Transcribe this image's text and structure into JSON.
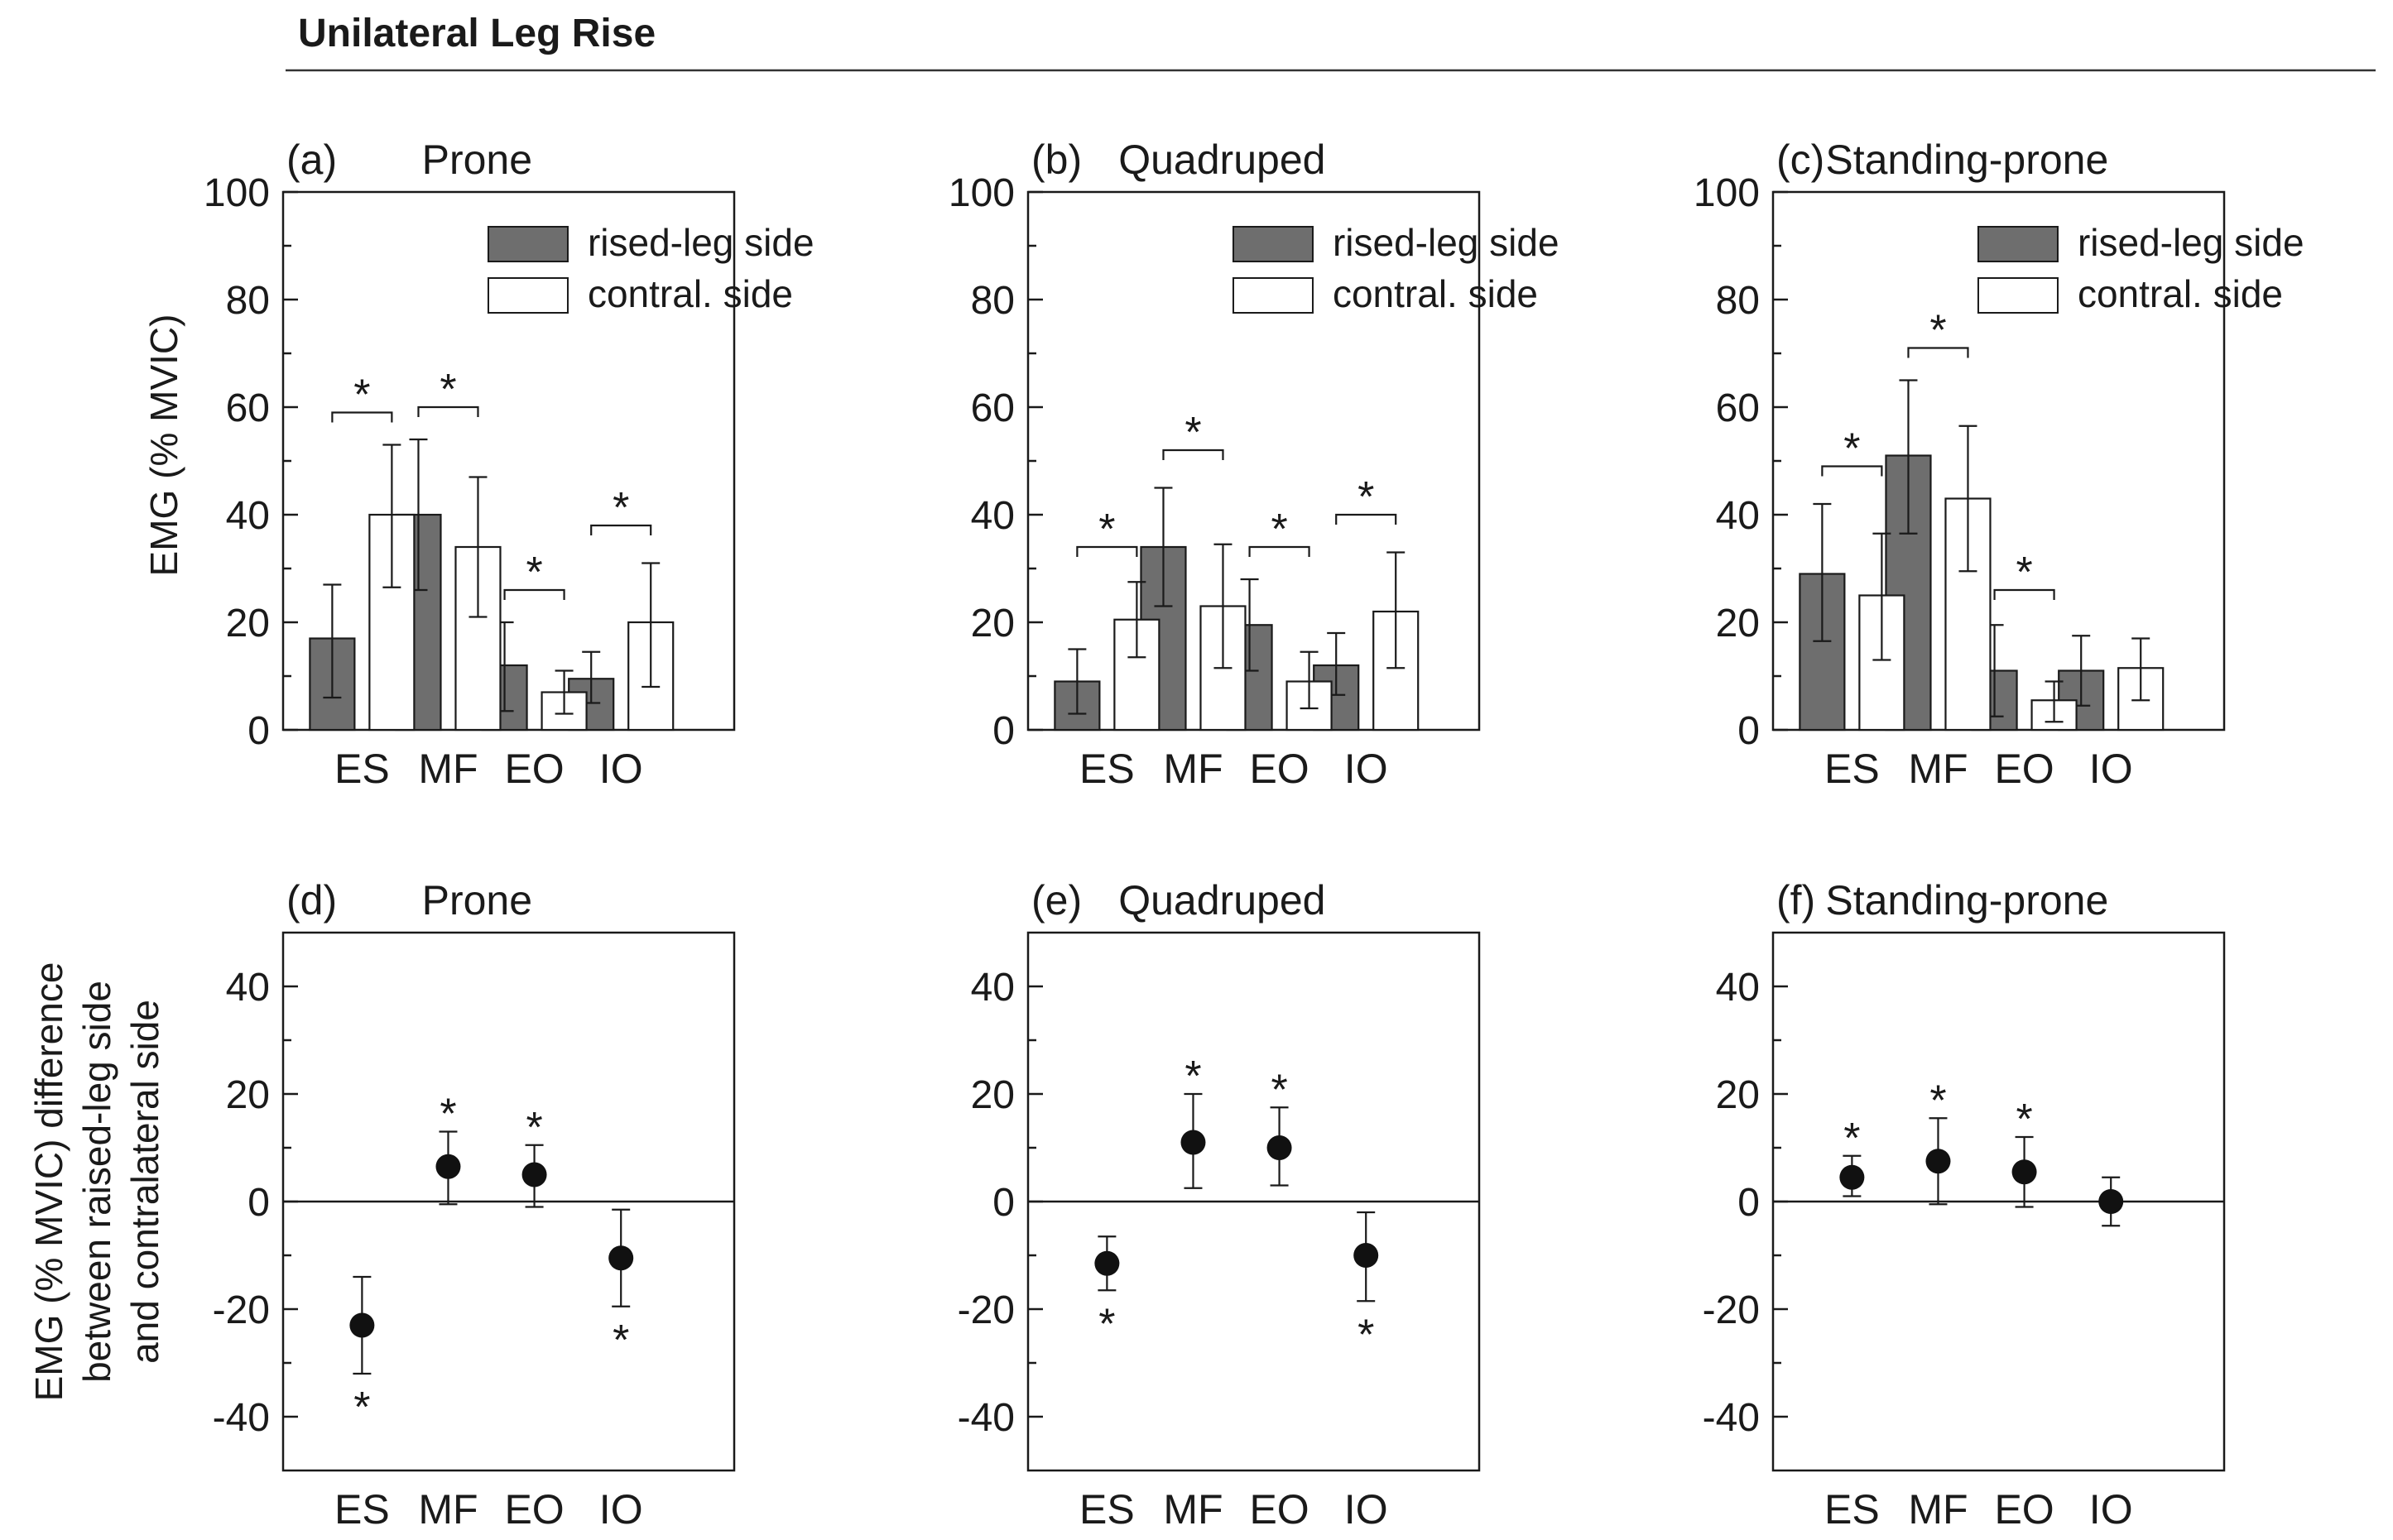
{
  "figure_title": "Unilateral Leg Rise",
  "top_ylabel": "EMG  (% MVIC)",
  "bottom_ylabel_lines": [
    "EMG (% MVIC) difference",
    "between raised-leg side",
    "and contralateral side"
  ],
  "colors": {
    "grey_bar": "#6e6e6e",
    "white_bar": "#ffffff",
    "ink": "#1a1a1a",
    "dot": "#111111"
  },
  "chart_data": [
    {
      "type": "bar",
      "panel": "(a)",
      "title": "Prone",
      "categories": [
        "ES",
        "MF",
        "EO",
        "IO"
      ],
      "ylim": [
        0,
        100
      ],
      "yticks": [
        "0",
        "20",
        "40",
        "60",
        "80",
        "100"
      ],
      "legend": [
        "rised-leg side",
        "contral. side"
      ],
      "legend_position": "top-right",
      "series": [
        {
          "name": "rised-leg side",
          "values": [
            17,
            40,
            12,
            9.5
          ],
          "err_low": [
            6,
            26,
            3.5,
            5
          ],
          "err_high": [
            27,
            54,
            20,
            14.5
          ]
        },
        {
          "name": "contral. side",
          "values": [
            40,
            34,
            7,
            20
          ],
          "err_low": [
            26.5,
            21,
            3,
            8
          ],
          "err_high": [
            53,
            47,
            11,
            31
          ]
        }
      ],
      "significance": [
        {
          "category": "ES",
          "label": "*",
          "level": 59
        },
        {
          "category": "MF",
          "label": "*",
          "level": 60
        },
        {
          "category": "EO",
          "label": "*",
          "level": 26
        },
        {
          "category": "IO",
          "label": "*",
          "level": 38
        }
      ]
    },
    {
      "type": "bar",
      "panel": "(b)",
      "title": "Quadruped",
      "categories": [
        "ES",
        "MF",
        "EO",
        "IO"
      ],
      "ylim": [
        0,
        100
      ],
      "yticks": [
        "0",
        "20",
        "40",
        "60",
        "80",
        "100"
      ],
      "legend": [
        "rised-leg side",
        "contral. side"
      ],
      "legend_position": "top-right",
      "series": [
        {
          "name": "rised-leg side",
          "values": [
            9,
            34,
            19.5,
            12
          ],
          "err_low": [
            3,
            23,
            11,
            6.5
          ],
          "err_high": [
            15,
            45,
            28,
            18
          ]
        },
        {
          "name": "contral. side",
          "values": [
            20.5,
            23,
            9,
            22
          ],
          "err_low": [
            13.5,
            11.5,
            4,
            11.5
          ],
          "err_high": [
            27.5,
            34.5,
            14.5,
            33
          ]
        }
      ],
      "significance": [
        {
          "category": "ES",
          "label": "*",
          "level": 34
        },
        {
          "category": "MF",
          "label": "*",
          "level": 52
        },
        {
          "category": "EO",
          "label": "*",
          "level": 34
        },
        {
          "category": "IO",
          "label": "*",
          "level": 40
        }
      ]
    },
    {
      "type": "bar",
      "panel": "(c)",
      "title": "Standing-prone",
      "categories": [
        "ES",
        "MF",
        "EO",
        "IO"
      ],
      "ylim": [
        0,
        100
      ],
      "yticks": [
        "0",
        "20",
        "40",
        "60",
        "80",
        "100"
      ],
      "legend": [
        "rised-leg side",
        "contral. side"
      ],
      "legend_position": "top-right",
      "series": [
        {
          "name": "rised-leg side",
          "values": [
            29,
            51,
            11,
            11
          ],
          "err_low": [
            16.5,
            36.5,
            2.5,
            4.5
          ],
          "err_high": [
            42,
            65,
            19.5,
            17.5
          ]
        },
        {
          "name": "contral. side",
          "values": [
            25,
            43,
            5.5,
            11.5
          ],
          "err_low": [
            13,
            29.5,
            1.5,
            5.5
          ],
          "err_high": [
            36.5,
            56.5,
            9,
            17
          ]
        }
      ],
      "significance": [
        {
          "category": "ES",
          "label": "*",
          "level": 49
        },
        {
          "category": "MF",
          "label": "*",
          "level": 71
        },
        {
          "category": "EO",
          "label": "*",
          "level": 26
        }
      ]
    },
    {
      "type": "scatter",
      "panel": "(d)",
      "title": "Prone",
      "categories": [
        "ES",
        "MF",
        "EO",
        "IO"
      ],
      "ylim": [
        -50,
        50
      ],
      "yticks": [
        "-40",
        "-20",
        "0",
        "20",
        "40"
      ],
      "values": [
        -23,
        6.5,
        5,
        -10.5
      ],
      "err_low": [
        -32,
        -0.5,
        -1,
        -19.5
      ],
      "err_high": [
        -14,
        13,
        10.5,
        -1.5
      ],
      "significance": [
        "below",
        "above",
        "above",
        "below"
      ]
    },
    {
      "type": "scatter",
      "panel": "(e)",
      "title": "Quadruped",
      "categories": [
        "ES",
        "MF",
        "EO",
        "IO"
      ],
      "ylim": [
        -50,
        50
      ],
      "yticks": [
        "-40",
        "-20",
        "0",
        "20",
        "40"
      ],
      "values": [
        -11.5,
        11,
        10,
        -10
      ],
      "err_low": [
        -16.5,
        2.5,
        3,
        -18.5
      ],
      "err_high": [
        -6.5,
        20,
        17.5,
        -2
      ],
      "significance": [
        "below",
        "above",
        "above",
        "below"
      ]
    },
    {
      "type": "scatter",
      "panel": "(f)",
      "title": "Standing-prone",
      "categories": [
        "ES",
        "MF",
        "EO",
        "IO"
      ],
      "ylim": [
        -50,
        50
      ],
      "yticks": [
        "-40",
        "-20",
        "0",
        "20",
        "40"
      ],
      "values": [
        4.5,
        7.5,
        5.5,
        0
      ],
      "err_low": [
        1,
        -0.5,
        -1,
        -4.5
      ],
      "err_high": [
        8.5,
        15.5,
        12,
        4.5
      ],
      "significance": [
        "above",
        "above",
        "above",
        "none"
      ]
    }
  ]
}
